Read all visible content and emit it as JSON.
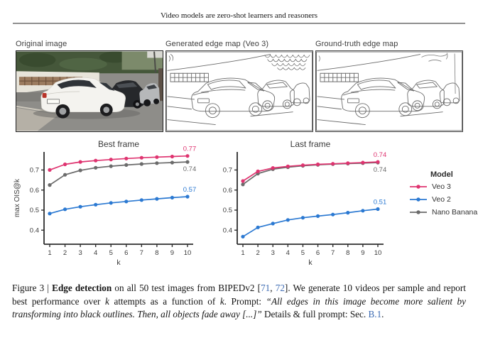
{
  "header": {
    "title": "Video models are zero-shot learners and reasoners"
  },
  "panels": [
    {
      "label": "Original image"
    },
    {
      "label": "Generated edge map (Veo 3)"
    },
    {
      "label": "Ground-truth edge map"
    }
  ],
  "colors": {
    "veo3": "#df3470",
    "veo2": "#2b79d2",
    "nano_banana": "#6b6b6b",
    "axis": "#2e2e2e",
    "tick_text": "#3d3d3d",
    "link": "#3d6bb3"
  },
  "legend": {
    "title": "Model",
    "entries": [
      {
        "label": "Veo 3",
        "color": "#df3470"
      },
      {
        "label": "Veo 2",
        "color": "#2b79d2"
      },
      {
        "label": "Nano Banana",
        "color": "#6b6b6b"
      }
    ]
  },
  "chart_data": [
    {
      "type": "line",
      "title": "Best frame",
      "xlabel": "k",
      "ylabel": "max OIS@k",
      "x": [
        1,
        2,
        3,
        4,
        5,
        6,
        7,
        8,
        9,
        10
      ],
      "yticks": [
        0.4,
        0.5,
        0.6,
        0.7
      ],
      "ylim": [
        0.33,
        0.79
      ],
      "legend_position": "right-outside",
      "grid": false,
      "series": [
        {
          "name": "Nano Banana",
          "color": "#6b6b6b",
          "values": [
            0.625,
            0.676,
            0.698,
            0.711,
            0.719,
            0.725,
            0.73,
            0.734,
            0.737,
            0.74
          ],
          "end_label": "0.74",
          "end_label_side": "below"
        },
        {
          "name": "Veo 2",
          "color": "#2b79d2",
          "values": [
            0.483,
            0.504,
            0.517,
            0.527,
            0.536,
            0.543,
            0.55,
            0.556,
            0.562,
            0.567
          ],
          "end_label": "0.57",
          "end_label_side": "above"
        },
        {
          "name": "Veo 3",
          "color": "#df3470",
          "values": [
            0.7,
            0.728,
            0.74,
            0.747,
            0.752,
            0.757,
            0.761,
            0.764,
            0.767,
            0.77
          ],
          "end_label": "0.77",
          "end_label_side": "above"
        }
      ]
    },
    {
      "type": "line",
      "title": "Last frame",
      "xlabel": "k",
      "ylabel": "",
      "x": [
        1,
        2,
        3,
        4,
        5,
        6,
        7,
        8,
        9,
        10
      ],
      "yticks": [
        0.4,
        0.5,
        0.6,
        0.7
      ],
      "ylim": [
        0.33,
        0.79
      ],
      "grid": false,
      "series": [
        {
          "name": "Nano Banana",
          "color": "#6b6b6b",
          "values": [
            0.628,
            0.682,
            0.704,
            0.714,
            0.721,
            0.726,
            0.729,
            0.732,
            0.734,
            0.737
          ],
          "end_label": "0.74",
          "end_label_side": "below"
        },
        {
          "name": "Veo 2",
          "color": "#2b79d2",
          "values": [
            0.368,
            0.414,
            0.433,
            0.451,
            0.462,
            0.47,
            0.478,
            0.487,
            0.497,
            0.505
          ],
          "end_label": "0.51",
          "end_label_side": "above"
        },
        {
          "name": "Veo 3",
          "color": "#df3470",
          "values": [
            0.645,
            0.693,
            0.71,
            0.718,
            0.724,
            0.728,
            0.731,
            0.734,
            0.737,
            0.74
          ],
          "end_label": "0.74",
          "end_label_side": "above"
        }
      ]
    }
  ],
  "caption": {
    "prefix": "Figure 3 | ",
    "bold": "Edge detection",
    "s1": " on all 50 test images from BIPEDv2 [",
    "ref1": "71",
    "sep": ", ",
    "ref2": "72",
    "s2": "]. We generate 10 videos per sample and report best performance over ",
    "k1": "k",
    "s3": " attempts as a function of ",
    "k2": "k",
    "s4": ". Prompt: ",
    "quote": "“All edges in this image become more salient by transforming into black outlines. Then, all objects fade away [...]”",
    "s5": " Details & full prompt: Sec. ",
    "ref3": "B.1",
    "s6": "."
  }
}
